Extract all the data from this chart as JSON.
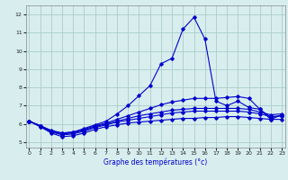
{
  "xlabel": "Graphe des températures (°c)",
  "background_color": "#d8eeee",
  "grid_color": "#aacccc",
  "line_color": "#0000cc",
  "x_ticks": [
    0,
    1,
    2,
    3,
    4,
    5,
    6,
    7,
    8,
    9,
    10,
    11,
    12,
    13,
    14,
    15,
    16,
    17,
    18,
    19,
    20,
    21,
    22,
    23
  ],
  "y_ticks": [
    5,
    6,
    7,
    8,
    9,
    10,
    11,
    12
  ],
  "ylim": [
    4.7,
    12.5
  ],
  "xlim": [
    -0.3,
    23.3
  ],
  "series": [
    {
      "x": [
        0,
        1,
        2,
        3,
        4,
        5,
        6,
        7,
        8,
        9,
        10,
        11,
        12,
        13,
        14,
        15,
        16,
        17,
        18,
        19,
        20,
        21,
        22,
        23
      ],
      "y": [
        6.15,
        5.85,
        5.5,
        5.3,
        5.35,
        5.5,
        5.7,
        5.85,
        5.95,
        6.05,
        6.1,
        6.15,
        6.2,
        6.25,
        6.3,
        6.3,
        6.35,
        6.35,
        6.4,
        6.4,
        6.35,
        6.3,
        6.25,
        6.25
      ]
    },
    {
      "x": [
        0,
        1,
        2,
        3,
        4,
        5,
        6,
        7,
        8,
        9,
        10,
        11,
        12,
        13,
        14,
        15,
        16,
        17,
        18,
        19,
        20,
        21,
        22,
        23
      ],
      "y": [
        6.15,
        5.85,
        5.55,
        5.4,
        5.45,
        5.6,
        5.8,
        5.95,
        6.1,
        6.2,
        6.3,
        6.4,
        6.5,
        6.6,
        6.65,
        6.7,
        6.7,
        6.7,
        6.7,
        6.7,
        6.65,
        6.55,
        6.4,
        6.45
      ]
    },
    {
      "x": [
        0,
        1,
        2,
        3,
        4,
        5,
        6,
        7,
        8,
        9,
        10,
        11,
        12,
        13,
        14,
        15,
        16,
        17,
        18,
        19,
        20,
        21,
        22,
        23
      ],
      "y": [
        6.15,
        5.9,
        5.6,
        5.45,
        5.5,
        5.65,
        5.85,
        6.0,
        6.15,
        6.3,
        6.45,
        6.55,
        6.65,
        6.75,
        6.8,
        6.85,
        6.85,
        6.85,
        6.85,
        6.85,
        6.8,
        6.65,
        6.5,
        6.55
      ]
    },
    {
      "x": [
        0,
        1,
        2,
        3,
        4,
        5,
        6,
        7,
        8,
        9,
        10,
        11,
        12,
        13,
        14,
        15,
        16,
        17,
        18,
        19,
        20,
        21,
        22,
        23
      ],
      "y": [
        6.15,
        5.9,
        5.65,
        5.5,
        5.55,
        5.7,
        5.9,
        6.05,
        6.25,
        6.45,
        6.65,
        6.85,
        7.05,
        7.2,
        7.3,
        7.4,
        7.4,
        7.4,
        7.45,
        7.5,
        7.4,
        6.8,
        6.35,
        6.45
      ]
    },
    {
      "x": [
        0,
        1,
        2,
        3,
        4,
        5,
        6,
        7,
        8,
        9,
        10,
        11,
        12,
        13,
        14,
        15,
        16,
        17,
        18,
        19,
        20,
        21,
        22,
        23
      ],
      "y": [
        6.15,
        5.9,
        5.6,
        5.5,
        5.55,
        5.75,
        5.95,
        6.15,
        6.55,
        7.0,
        7.55,
        8.1,
        9.3,
        9.6,
        11.2,
        11.85,
        10.65,
        7.25,
        7.0,
        7.25,
        6.9,
        6.8,
        6.25,
        6.5
      ]
    }
  ]
}
